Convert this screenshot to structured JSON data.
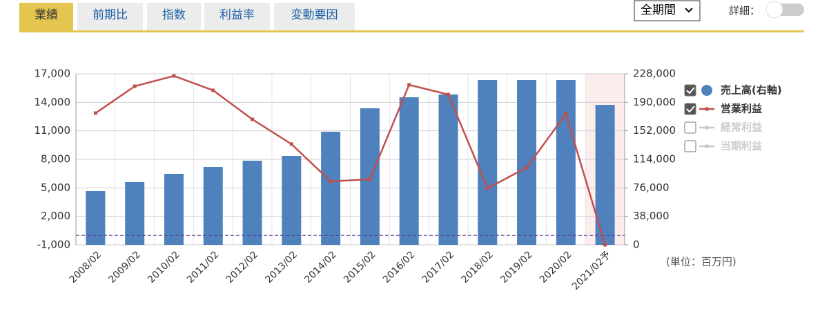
{
  "tabs": [
    "業績",
    "前期比",
    "指数",
    "利益率",
    "変動要因"
  ],
  "period_select": "全期間",
  "detail_label": "詳細：",
  "unit_note": "(単位：百万円)",
  "chart_data": {
    "type": "bar_line",
    "categories": [
      "2008/02",
      "2009/02",
      "2010/02",
      "2011/02",
      "2012/02",
      "2013/02",
      "2014/02",
      "2015/02",
      "2016/02",
      "2017/02",
      "2018/02",
      "2019/02",
      "2020/02",
      "2021/02予"
    ],
    "series": [
      {
        "name": "売上高(右軸)",
        "type": "bar",
        "axis": "y2",
        "color": "#4f81bd",
        "checked": true,
        "values": [
          71700,
          83700,
          94700,
          103900,
          112200,
          118600,
          150800,
          182000,
          196700,
          200400,
          219700,
          219700,
          219700,
          186600
        ]
      },
      {
        "name": "営業利益",
        "type": "line",
        "axis": "y",
        "color": "#c0504d",
        "checked": true,
        "values": [
          12860,
          15690,
          16780,
          15260,
          12210,
          9600,
          5680,
          5900,
          15840,
          14820,
          4950,
          7130,
          12790,
          -1000
        ]
      },
      {
        "name": "経常利益",
        "type": "line",
        "axis": "y",
        "color": "#c8c8c8",
        "checked": false,
        "values": [
          null,
          null,
          null,
          null,
          null,
          null,
          null,
          null,
          null,
          null,
          null,
          null,
          null,
          null
        ]
      },
      {
        "name": "当期利益",
        "type": "line",
        "axis": "y",
        "color": "#c8c8c8",
        "checked": false,
        "values": [
          null,
          null,
          null,
          null,
          null,
          null,
          null,
          null,
          null,
          null,
          null,
          null,
          null,
          null
        ]
      }
    ],
    "ylim": [
      -1000,
      17000
    ],
    "yticks": [
      {
        "value": -1000,
        "label": "-1,000"
      },
      {
        "value": 2000,
        "label": "2,000"
      },
      {
        "value": 5000,
        "label": "5,000"
      },
      {
        "value": 8000,
        "label": "8,000"
      },
      {
        "value": 11000,
        "label": "11,000"
      },
      {
        "value": 14000,
        "label": "14,000"
      },
      {
        "value": 17000,
        "label": "17,000"
      }
    ],
    "y2lim": [
      0,
      228000
    ],
    "y2ticks": [
      0,
      {
        "value": 38000,
        "label": "38,000"
      },
      {
        "value": 76000,
        "label": "76,000"
      },
      {
        "value": 114000,
        "label": "114,000"
      },
      {
        "value": 152000,
        "label": "152,000"
      },
      {
        "value": 190000,
        "label": "190,000"
      },
      {
        "value": 228000,
        "label": "228,000"
      }
    ],
    "reference_line": 0,
    "highlight_category": 13,
    "grid": true
  }
}
